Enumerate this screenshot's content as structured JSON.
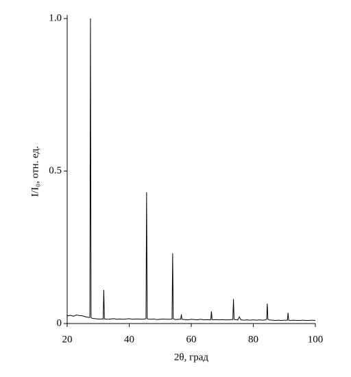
{
  "chart_data": {
    "type": "line",
    "xlabel": "2θ, град",
    "ylabel": "I/I₀, отн. ед.",
    "xlim": [
      20,
      100
    ],
    "xticks": [
      20,
      40,
      60,
      80,
      100
    ],
    "ylim": [
      0,
      1
    ],
    "yticks": [
      0,
      0.5,
      {
        "value": 1,
        "label": "1.0"
      }
    ],
    "grid": false,
    "series": [
      {
        "color": "#000000",
        "x": [
          20,
          21,
          22,
          23,
          24,
          25,
          26,
          27,
          27.3,
          27.5,
          27.7,
          28,
          29,
          30,
          31,
          31.6,
          31.8,
          32,
          33,
          34,
          35,
          36,
          37,
          38,
          39,
          40,
          41,
          42,
          43,
          44,
          45,
          45.4,
          45.6,
          45.8,
          46,
          47,
          48,
          49,
          50,
          51,
          52,
          53,
          53.8,
          54,
          54.2,
          55,
          56,
          56.6,
          56.8,
          57,
          58,
          59,
          60,
          61,
          62,
          63,
          64,
          65,
          66,
          66.3,
          66.5,
          66.7,
          67,
          68,
          69,
          70,
          71,
          72,
          73,
          73.4,
          73.6,
          73.8,
          74,
          75,
          75.5,
          76,
          77,
          78,
          79,
          80,
          81,
          82,
          83,
          84,
          84.3,
          84.5,
          84.7,
          85,
          86,
          87,
          88,
          89,
          90,
          91,
          91.2,
          91.4,
          92,
          93,
          94,
          95,
          96,
          97,
          98,
          99,
          100
        ],
        "values": [
          0.025,
          0.027,
          0.024,
          0.028,
          0.026,
          0.025,
          0.022,
          0.02,
          0.02,
          1.0,
          0.02,
          0.017,
          0.016,
          0.015,
          0.015,
          0.015,
          0.11,
          0.015,
          0.014,
          0.015,
          0.016,
          0.014,
          0.015,
          0.014,
          0.015,
          0.016,
          0.014,
          0.015,
          0.015,
          0.014,
          0.015,
          0.016,
          0.43,
          0.016,
          0.015,
          0.014,
          0.015,
          0.013,
          0.014,
          0.015,
          0.014,
          0.014,
          0.015,
          0.23,
          0.015,
          0.013,
          0.014,
          0.014,
          0.03,
          0.014,
          0.013,
          0.012,
          0.014,
          0.013,
          0.012,
          0.014,
          0.012,
          0.013,
          0.012,
          0.013,
          0.04,
          0.013,
          0.012,
          0.013,
          0.012,
          0.013,
          0.012,
          0.012,
          0.013,
          0.013,
          0.08,
          0.014,
          0.013,
          0.012,
          0.022,
          0.012,
          0.011,
          0.012,
          0.011,
          0.012,
          0.011,
          0.012,
          0.011,
          0.012,
          0.014,
          0.065,
          0.014,
          0.012,
          0.011,
          0.01,
          0.011,
          0.01,
          0.011,
          0.011,
          0.035,
          0.011,
          0.01,
          0.011,
          0.01,
          0.01,
          0.011,
          0.01,
          0.01,
          0.011,
          0.01
        ]
      }
    ]
  }
}
